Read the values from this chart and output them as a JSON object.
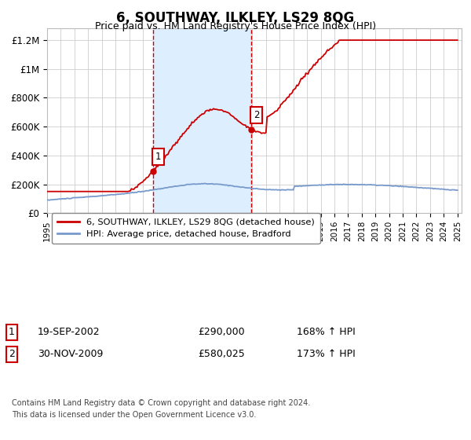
{
  "title": "6, SOUTHWAY, ILKLEY, LS29 8QG",
  "subtitle": "Price paid vs. HM Land Registry's House Price Index (HPI)",
  "ylabel_ticks": [
    "£0",
    "£200K",
    "£400K",
    "£600K",
    "£800K",
    "£1M",
    "£1.2M"
  ],
  "ytick_values": [
    0,
    200000,
    400000,
    600000,
    800000,
    1000000,
    1200000
  ],
  "ylim": [
    0,
    1280000
  ],
  "xlim_start": 1995.0,
  "xlim_end": 2025.3,
  "sale1_year": 2002.72,
  "sale1_price": 290000,
  "sale1_label": "1",
  "sale1_date": "19-SEP-2002",
  "sale1_price_str": "£290,000",
  "sale1_hpi_pct": "168% ↑ HPI",
  "sale2_year": 2009.92,
  "sale2_price": 580025,
  "sale2_label": "2",
  "sale2_date": "30-NOV-2009",
  "sale2_price_str": "£580,025",
  "sale2_hpi_pct": "173% ↑ HPI",
  "line1_label": "6, SOUTHWAY, ILKLEY, LS29 8QG (detached house)",
  "line2_label": "HPI: Average price, detached house, Bradford",
  "line1_color": "#cc0000",
  "line2_color": "#7799cc",
  "shade_color": "#ddeeff",
  "vline_color": "#cc0000",
  "footer1": "Contains HM Land Registry data © Crown copyright and database right 2024.",
  "footer2": "This data is licensed under the Open Government Licence v3.0.",
  "background_color": "#ffffff",
  "grid_color": "#cccccc"
}
